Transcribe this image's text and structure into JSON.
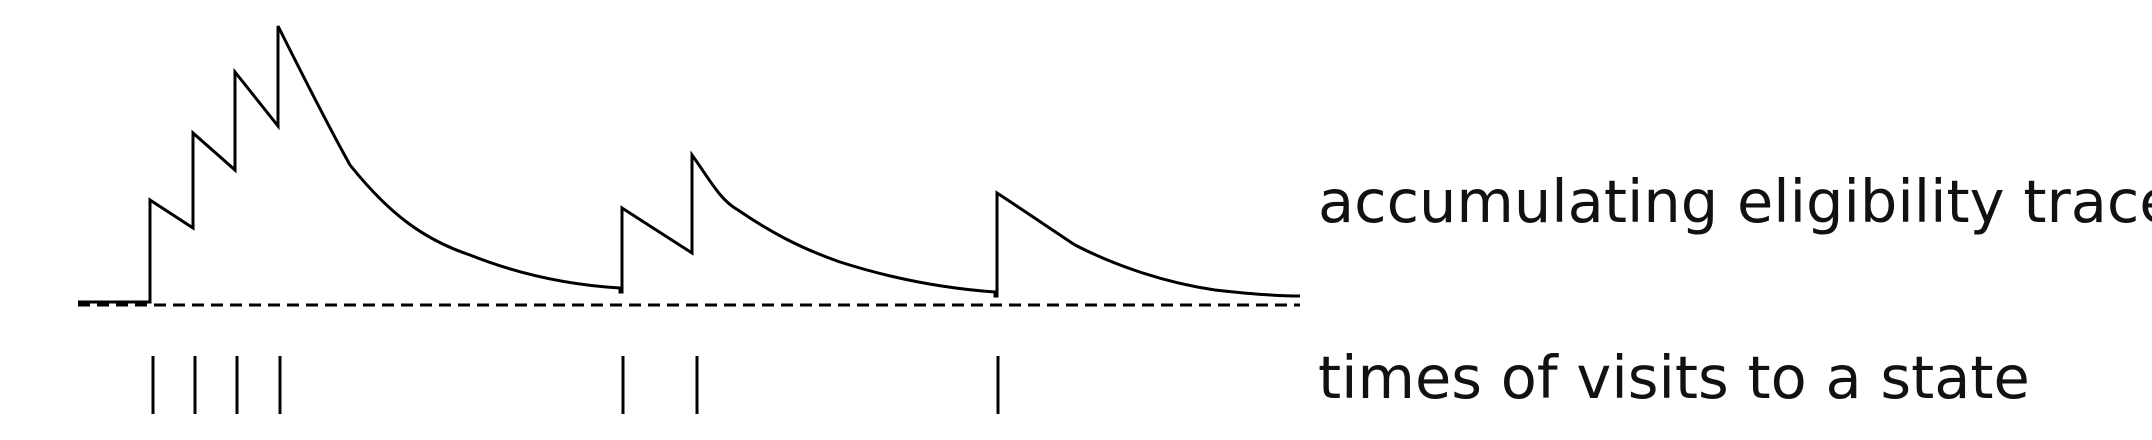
{
  "labels": {
    "trace": "accumulating eligibility trace",
    "visits": "times of visits to a state"
  },
  "colors": {
    "ink": "#000000",
    "baseline": "#000000"
  },
  "visits": {
    "count": 7,
    "groups": [
      4,
      2,
      1
    ]
  }
}
